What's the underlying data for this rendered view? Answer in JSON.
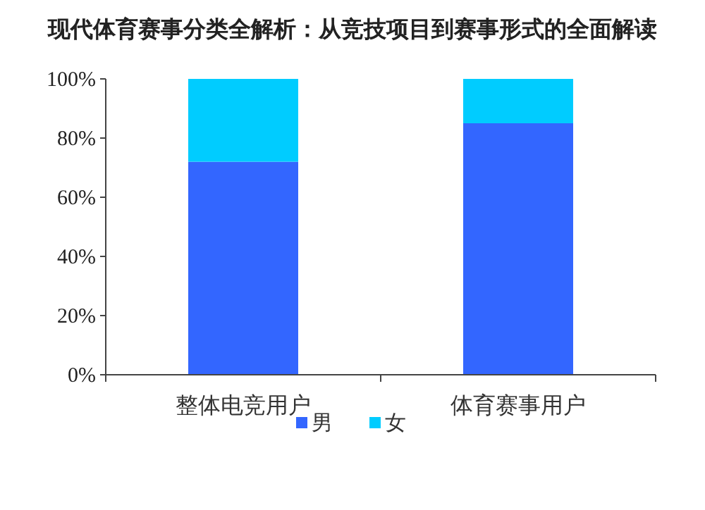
{
  "chart_data": {
    "type": "bar",
    "title": "现代体育赛事分类全解析：从竞技项目到赛事形式的全面解读",
    "categories": [
      "整体电竞用户",
      "体育赛事用户"
    ],
    "stacked": true,
    "series": [
      {
        "name": "男",
        "color": "#3366ff",
        "values": [
          72,
          85
        ]
      },
      {
        "name": "女",
        "color": "#00ccff",
        "values": [
          28,
          15
        ]
      }
    ],
    "ylim": [
      0,
      100
    ],
    "yticks": [
      {
        "value": 0,
        "label": "0%"
      },
      {
        "value": 20,
        "label": "20%"
      },
      {
        "value": 40,
        "label": "40%"
      },
      {
        "value": 60,
        "label": "60%"
      },
      {
        "value": 80,
        "label": "80%"
      },
      {
        "value": 100,
        "label": "100%"
      }
    ],
    "grid": false,
    "legend": "bottom"
  }
}
